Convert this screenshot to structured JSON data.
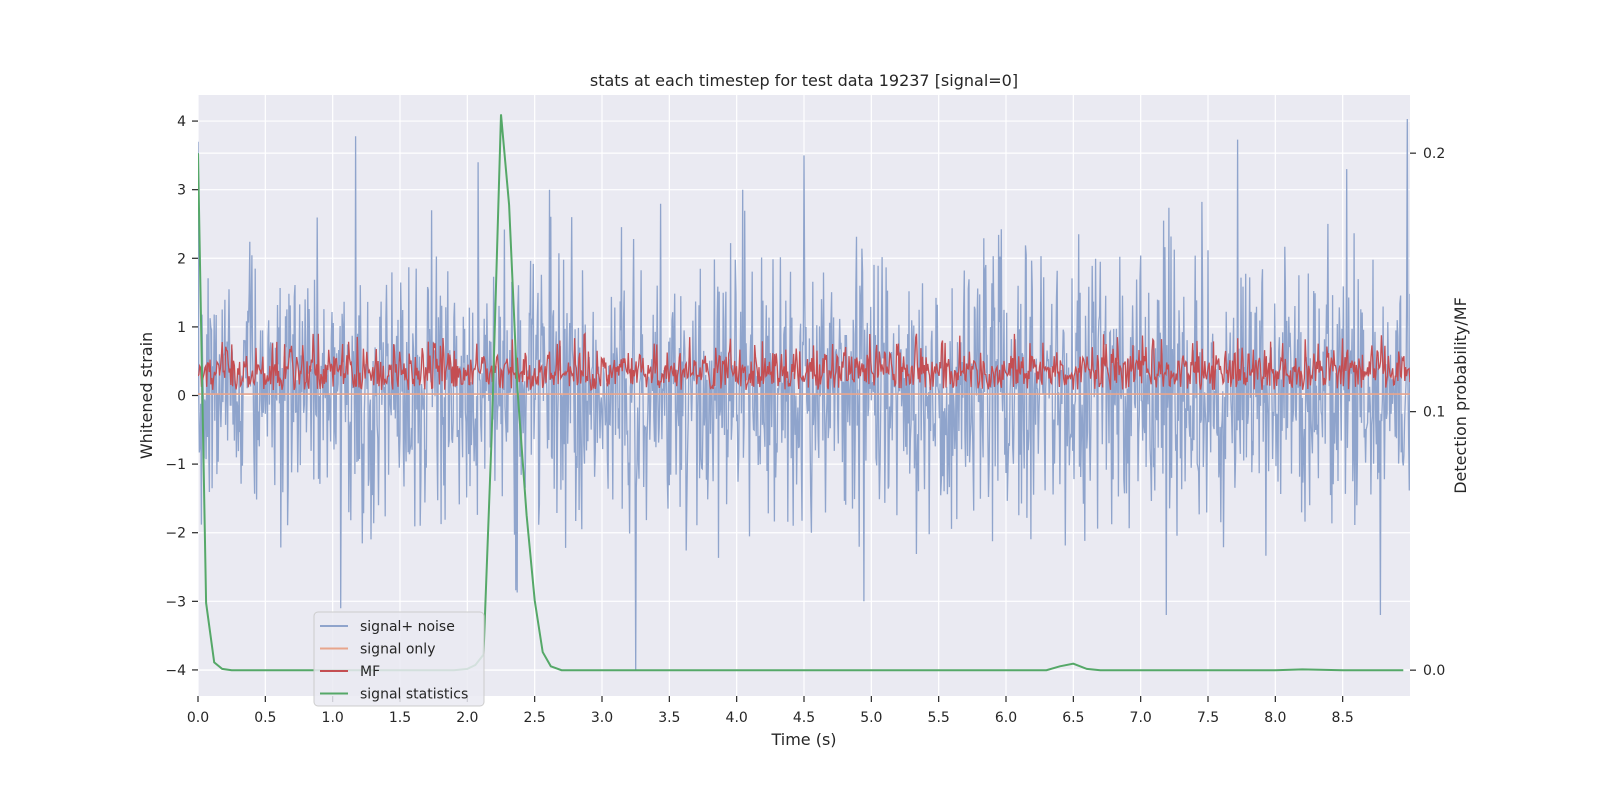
{
  "chart_data": {
    "type": "line",
    "title": "stats at each timestep for test data 19237 [signal=0]",
    "xlabel": "Time (s)",
    "ylabel": "Whitened strain",
    "y2label": "Detection probability/MF",
    "xlim": [
      0,
      9.0
    ],
    "ylim": [
      -4.38,
      4.38
    ],
    "y2lim": [
      -0.01,
      0.2225
    ],
    "xticks": [
      "0.0",
      "0.5",
      "1.0",
      "1.5",
      "2.0",
      "2.5",
      "3.0",
      "3.5",
      "4.0",
      "4.5",
      "5.0",
      "5.5",
      "6.0",
      "6.5",
      "7.0",
      "7.5",
      "8.0",
      "8.5"
    ],
    "yticks": [
      "4",
      "3",
      "2",
      "1",
      "0",
      "−1",
      "−2",
      "−3",
      "−4"
    ],
    "y2ticks": [
      "0.2",
      "0.1",
      "0.0"
    ],
    "grid": true,
    "legend_position": "lower-left",
    "series": [
      {
        "name": "signal+ noise",
        "color": "#8fa4cc",
        "axis": "left",
        "description_range": [
          -4.0,
          4.0
        ],
        "peaks": [
          [
            0.0,
            3.7
          ],
          [
            1.17,
            3.78
          ],
          [
            2.08,
            3.4
          ],
          [
            4.5,
            3.5
          ],
          [
            7.72,
            3.73
          ],
          [
            8.53,
            3.3
          ],
          [
            8.98,
            4.03
          ],
          [
            3.25,
            -4.0
          ],
          [
            1.06,
            -3.1
          ],
          [
            7.19,
            -3.2
          ],
          [
            8.78,
            -3.2
          ]
        ]
      },
      {
        "name": "signal only",
        "color": "#e8a58c",
        "axis": "left",
        "x": [
          0,
          9.0
        ],
        "y": [
          0.02,
          0.02
        ]
      },
      {
        "name": "MF",
        "color": "#c44e52",
        "axis": "left",
        "description_range": [
          0.0,
          0.9
        ]
      },
      {
        "name": "signal statistics",
        "color": "#55a868",
        "axis": "right",
        "x": [
          0.0,
          0.06,
          0.12,
          0.18,
          0.25,
          0.5,
          1.0,
          1.5,
          1.9,
          2.0,
          2.06,
          2.12,
          2.18,
          2.25,
          2.31,
          2.37,
          2.44,
          2.5,
          2.56,
          2.62,
          2.7,
          3.0,
          4.0,
          5.0,
          6.0,
          6.3,
          6.4,
          6.5,
          6.6,
          6.7,
          7.0,
          8.0,
          8.2,
          8.5,
          8.95
        ],
        "y": [
          0.2,
          0.026,
          0.003,
          0.0005,
          0.0,
          0.0,
          0.0,
          0.0,
          0.0,
          0.0005,
          0.002,
          0.006,
          0.09,
          0.215,
          0.18,
          0.11,
          0.06,
          0.027,
          0.007,
          0.0015,
          0.0,
          0.0,
          0.0,
          0.0,
          0.0,
          0.0,
          0.0015,
          0.0025,
          0.0005,
          0.0,
          0.0,
          0.0,
          0.0003,
          0.0,
          0.0
        ]
      }
    ]
  }
}
